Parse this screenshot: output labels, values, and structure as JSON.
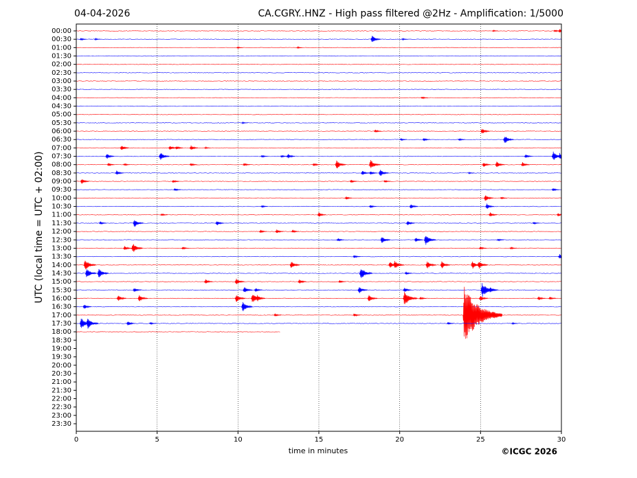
{
  "chart_data": {
    "type": "helicorder",
    "date": "04-04-2026",
    "title": "CA.CGRY..HNZ - High pass filtered @2Hz - Amplification: 1/5000",
    "xlabel": "time in minutes",
    "ylabel": "UTC (local time = UTC + 02:00)",
    "credit": "©ICGC 2026",
    "xlim": [
      0,
      30
    ],
    "xticks": [
      0,
      5,
      10,
      15,
      20,
      25,
      30
    ],
    "grid": true,
    "colors": [
      "#ff0000",
      "#0000ff"
    ],
    "rows": [
      "00:00",
      "00:30",
      "01:00",
      "01:30",
      "02:00",
      "02:30",
      "03:00",
      "03:30",
      "04:00",
      "04:30",
      "05:00",
      "05:30",
      "06:00",
      "06:30",
      "07:00",
      "07:30",
      "08:00",
      "08:30",
      "09:00",
      "09:30",
      "10:00",
      "10:30",
      "11:00",
      "11:30",
      "12:00",
      "12:30",
      "13:00",
      "13:30",
      "14:00",
      "14:30",
      "15:00",
      "15:30",
      "16:00",
      "16:30",
      "17:00",
      "17:30",
      "18:00",
      "18:30",
      "19:00",
      "19:30",
      "20:00",
      "20:30",
      "21:00",
      "21:30",
      "22:00",
      "22:30",
      "23:00",
      "23:30"
    ],
    "traces": [
      {
        "end": 30,
        "events": [
          [
            25.8,
            0.1
          ],
          [
            29.6,
            0.15
          ],
          [
            29.9,
            0.25
          ]
        ]
      },
      {
        "end": 30,
        "events": [
          [
            0.3,
            0.15
          ],
          [
            1.2,
            0.1
          ],
          [
            18.3,
            0.45
          ],
          [
            20.2,
            0.1
          ]
        ]
      },
      {
        "end": 30,
        "events": [
          [
            10,
            0.1
          ],
          [
            13.7,
            0.1
          ]
        ]
      },
      {
        "end": 30,
        "events": []
      },
      {
        "end": 30,
        "events": []
      },
      {
        "end": 30,
        "events": []
      },
      {
        "end": 30,
        "events": []
      },
      {
        "end": 30,
        "events": []
      },
      {
        "end": 30,
        "events": [
          [
            21.4,
            0.15
          ]
        ]
      },
      {
        "end": 30,
        "events": []
      },
      {
        "end": 30,
        "events": []
      },
      {
        "end": 30,
        "events": [
          [
            10.3,
            0.1
          ]
        ]
      },
      {
        "end": 30,
        "events": [
          [
            18.5,
            0.2
          ],
          [
            25.1,
            0.35
          ]
        ]
      },
      {
        "end": 30,
        "events": [
          [
            20.1,
            0.15
          ],
          [
            21.5,
            0.2
          ],
          [
            23.7,
            0.15
          ],
          [
            26.5,
            0.5
          ]
        ]
      },
      {
        "end": 30,
        "events": [
          [
            2.8,
            0.35
          ],
          [
            5.8,
            0.3
          ],
          [
            6.2,
            0.25
          ],
          [
            7.1,
            0.3
          ],
          [
            8,
            0.1
          ]
        ]
      },
      {
        "end": 30,
        "events": [
          [
            1.9,
            0.35
          ],
          [
            5.2,
            0.5
          ],
          [
            11.5,
            0.15
          ],
          [
            12.7,
            0.15
          ],
          [
            13.1,
            0.3
          ],
          [
            27.8,
            0.25
          ],
          [
            29.5,
            0.6
          ],
          [
            29.9,
            0.4
          ]
        ]
      },
      {
        "end": 30,
        "events": [
          [
            2.0,
            0.2
          ],
          [
            3.0,
            0.15
          ],
          [
            7.1,
            0.2
          ],
          [
            10.4,
            0.2
          ],
          [
            14.7,
            0.2
          ],
          [
            16.1,
            0.55
          ],
          [
            18.2,
            0.6
          ],
          [
            25.2,
            0.3
          ],
          [
            26.0,
            0.4
          ],
          [
            27.6,
            0.3
          ]
        ]
      },
      {
        "end": 30,
        "events": [
          [
            2.5,
            0.3
          ],
          [
            17.7,
            0.3
          ],
          [
            18.2,
            0.25
          ],
          [
            18.8,
            0.45
          ],
          [
            24.3,
            0.1
          ]
        ]
      },
      {
        "end": 30,
        "events": [
          [
            0.35,
            0.35
          ],
          [
            6,
            0.2
          ],
          [
            17.0,
            0.2
          ],
          [
            19.1,
            0.15
          ]
        ]
      },
      {
        "end": 30,
        "events": [
          [
            6.1,
            0.2
          ],
          [
            29.5,
            0.2
          ]
        ]
      },
      {
        "end": 30,
        "events": [
          [
            16.7,
            0.2
          ],
          [
            25.3,
            0.4
          ],
          [
            26.3,
            0.15
          ]
        ]
      },
      {
        "end": 30,
        "events": [
          [
            11.5,
            0.15
          ],
          [
            18.2,
            0.2
          ],
          [
            20.7,
            0.3
          ],
          [
            25.4,
            0.35
          ]
        ]
      },
      {
        "end": 30,
        "events": [
          [
            5.3,
            0.15
          ],
          [
            15,
            0.3
          ],
          [
            25.6,
            0.3
          ],
          [
            29.8,
            0.2
          ]
        ]
      },
      {
        "end": 30,
        "events": [
          [
            1.5,
            0.2
          ],
          [
            3.6,
            0.5
          ],
          [
            8.7,
            0.3
          ],
          [
            20.5,
            0.3
          ],
          [
            28.3,
            0.15
          ]
        ]
      },
      {
        "end": 30,
        "events": [
          [
            11.4,
            0.2
          ],
          [
            12.4,
            0.25
          ],
          [
            13.4,
            0.2
          ]
        ]
      },
      {
        "end": 30,
        "events": [
          [
            16.2,
            0.2
          ],
          [
            18.9,
            0.45
          ],
          [
            21.0,
            0.3
          ],
          [
            21.6,
            0.65
          ],
          [
            26.1,
            0.15
          ]
        ]
      },
      {
        "end": 30,
        "events": [
          [
            3.0,
            0.3
          ],
          [
            3.5,
            0.6
          ],
          [
            6.6,
            0.2
          ],
          [
            25.0,
            0.2
          ],
          [
            26.9,
            0.15
          ]
        ]
      },
      {
        "end": 30,
        "events": [
          [
            17.2,
            0.2
          ],
          [
            29.9,
            0.3
          ]
        ]
      },
      {
        "end": 30,
        "events": [
          [
            0.55,
            0.7
          ],
          [
            13.3,
            0.45
          ],
          [
            19.4,
            0.4
          ],
          [
            19.7,
            0.55
          ],
          [
            21.7,
            0.5
          ],
          [
            22.6,
            0.45
          ],
          [
            24.5,
            0.5
          ],
          [
            24.9,
            0.5
          ]
        ]
      },
      {
        "end": 30,
        "events": [
          [
            0.65,
            0.6
          ],
          [
            1.4,
            0.6
          ],
          [
            17.6,
            0.75
          ],
          [
            20.4,
            0.2
          ]
        ]
      },
      {
        "end": 30,
        "events": [
          [
            8.0,
            0.3
          ],
          [
            9.9,
            0.4
          ],
          [
            13.8,
            0.3
          ],
          [
            16.3,
            0.2
          ]
        ]
      },
      {
        "end": 30,
        "events": [
          [
            3.6,
            0.3
          ],
          [
            10.4,
            0.4
          ],
          [
            11.1,
            0.25
          ],
          [
            17.5,
            0.45
          ],
          [
            20.3,
            0.3
          ],
          [
            25.1,
            0.9
          ],
          [
            25.6,
            0.4
          ]
        ]
      },
      {
        "end": 30,
        "events": [
          [
            2.6,
            0.4
          ],
          [
            3.9,
            0.45
          ],
          [
            9.9,
            0.5
          ],
          [
            10.9,
            0.6
          ],
          [
            11.2,
            0.4
          ],
          [
            18.1,
            0.45
          ],
          [
            20.3,
            0.9
          ],
          [
            21.3,
            0.2
          ],
          [
            25.0,
            0.35
          ],
          [
            28.6,
            0.25
          ],
          [
            29.3,
            0.2
          ]
        ]
      },
      {
        "end": 30,
        "events": [
          [
            0.5,
            0.3
          ],
          [
            10.3,
            0.6
          ]
        ]
      },
      {
        "end": 30,
        "events": [
          [
            12.3,
            0.2
          ],
          [
            17.2,
            0.2
          ],
          [
            24.0,
            3.5
          ]
        ]
      },
      {
        "end": 30,
        "events": [
          [
            0.3,
            0.7
          ],
          [
            0.7,
            0.7
          ],
          [
            3.2,
            0.3
          ],
          [
            4.6,
            0.15
          ],
          [
            23.0,
            0.15
          ],
          [
            27.0,
            0.1
          ]
        ]
      },
      {
        "end": 12.6,
        "events": []
      }
    ]
  }
}
